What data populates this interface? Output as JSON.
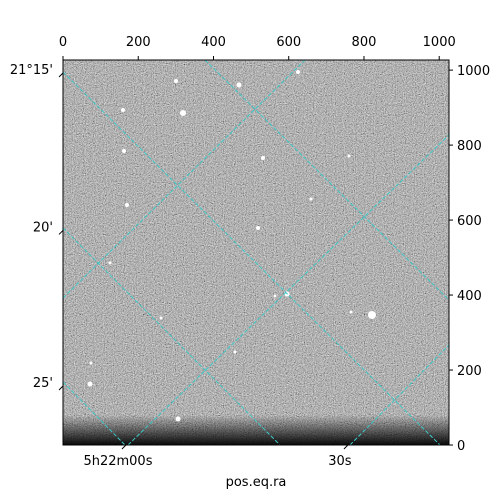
{
  "chart_data": {
    "type": "image",
    "xlabel": "pos.eq.ra",
    "xlim": [
      0,
      1026
    ],
    "xticks": [
      0,
      200,
      400,
      600,
      800,
      1000
    ],
    "ylim": [
      0,
      1027
    ],
    "yticks": [
      0,
      200,
      400,
      600,
      800,
      1000
    ],
    "dec_ticks": [
      {
        "value": 1003,
        "label": "21°15'"
      },
      {
        "value": 583,
        "label": "20'"
      },
      {
        "value": 168,
        "label": "25'"
      }
    ],
    "ra_ticks": [
      {
        "value": 178,
        "label": "5h22m00s"
      },
      {
        "value": 768,
        "label": "30s"
      }
    ]
  }
}
